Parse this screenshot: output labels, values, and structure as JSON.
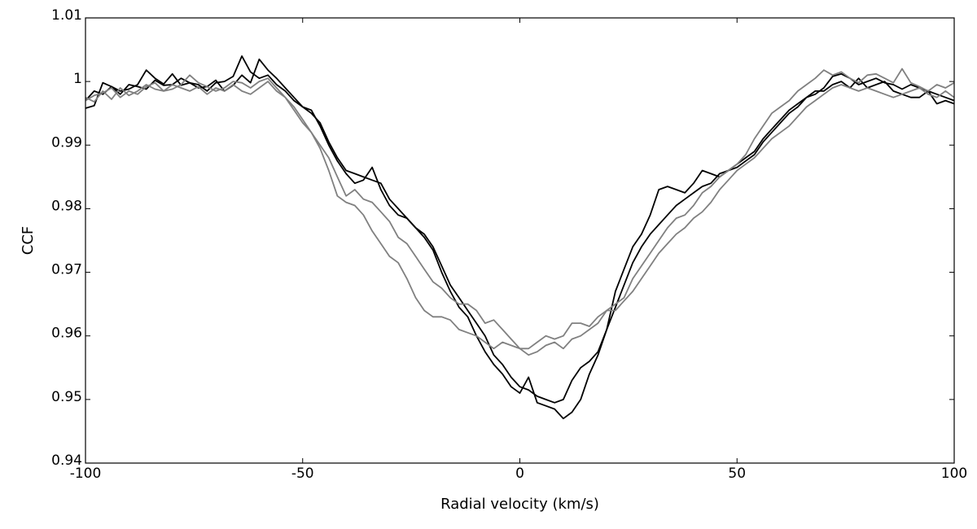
{
  "chart_data": {
    "type": "line",
    "title": "",
    "xlabel": "Radial velocity (km/s)",
    "ylabel": "CCF",
    "xlim": [
      -100,
      100
    ],
    "ylim": [
      0.94,
      1.01
    ],
    "x_ticks": [
      -100,
      -50,
      0,
      50,
      100
    ],
    "x_tick_labels": [
      "-100",
      "-50",
      "0",
      "50",
      "100"
    ],
    "y_ticks": [
      0.94,
      0.95,
      0.96,
      0.97,
      0.98,
      0.99,
      1.0,
      1.01
    ],
    "y_tick_labels": [
      "0.94",
      "0.95",
      "0.96",
      "0.97",
      "0.98",
      "0.99",
      "1",
      "1.01"
    ],
    "grid": false,
    "legend": "none",
    "series": [
      {
        "color": "#000000",
        "x": [
          -100,
          -98,
          -96,
          -94,
          -92,
          -90,
          -88,
          -86,
          -84,
          -82,
          -80,
          -78,
          -76,
          -74,
          -72,
          -70,
          -68,
          -66,
          -64,
          -62,
          -60,
          -58,
          -56,
          -54,
          -52,
          -50,
          -48,
          -46,
          -44,
          -42,
          -40,
          -38,
          -36,
          -34,
          -32,
          -30,
          -28,
          -26,
          -24,
          -22,
          -20,
          -18,
          -16,
          -14,
          -12,
          -10,
          -8,
          -6,
          -4,
          -2,
          0,
          2,
          4,
          6,
          8,
          10,
          12,
          14,
          16,
          18,
          20,
          22,
          24,
          26,
          28,
          30,
          32,
          34,
          36,
          38,
          40,
          42,
          44,
          46,
          48,
          50,
          52,
          54,
          56,
          58,
          60,
          62,
          64,
          66,
          68,
          70,
          72,
          74,
          76,
          78,
          80,
          82,
          84,
          86,
          88,
          90,
          92,
          94,
          96,
          98,
          100
        ],
        "y": [
          0.9958,
          0.9962,
          0.9998,
          0.9992,
          0.9985,
          0.9988,
          0.9995,
          1.0018,
          1.0005,
          0.9996,
          1.0012,
          0.9994,
          0.9998,
          0.999,
          0.9992,
          1.0002,
          0.9985,
          0.9994,
          1.001,
          0.9998,
          1.0035,
          1.0018,
          1.0005,
          0.999,
          0.9975,
          0.996,
          0.9955,
          0.993,
          0.99,
          0.9875,
          0.9855,
          0.984,
          0.9845,
          0.9865,
          0.983,
          0.9805,
          0.979,
          0.9785,
          0.977,
          0.9755,
          0.9735,
          0.97,
          0.967,
          0.9645,
          0.963,
          0.96,
          0.9575,
          0.9555,
          0.954,
          0.952,
          0.951,
          0.9535,
          0.9495,
          0.949,
          0.9485,
          0.947,
          0.948,
          0.95,
          0.954,
          0.957,
          0.961,
          0.967,
          0.9705,
          0.974,
          0.976,
          0.979,
          0.983,
          0.9835,
          0.983,
          0.9825,
          0.984,
          0.986,
          0.9855,
          0.985,
          0.986,
          0.987,
          0.988,
          0.989,
          0.991,
          0.9925,
          0.994,
          0.9955,
          0.9965,
          0.9975,
          0.9985,
          0.9985,
          0.9995,
          1.0,
          0.999,
          1.0005,
          0.999,
          0.9995,
          1.0,
          0.9985,
          0.998,
          0.9975,
          0.9975,
          0.9985,
          0.9965,
          0.997,
          0.9965
        ]
      },
      {
        "color": "#000000",
        "x": [
          -100,
          -98,
          -96,
          -94,
          -92,
          -90,
          -88,
          -86,
          -84,
          -82,
          -80,
          -78,
          -76,
          -74,
          -72,
          -70,
          -68,
          -66,
          -64,
          -62,
          -60,
          -58,
          -56,
          -54,
          -52,
          -50,
          -48,
          -46,
          -44,
          -42,
          -40,
          -38,
          -36,
          -34,
          -32,
          -30,
          -28,
          -26,
          -24,
          -22,
          -20,
          -18,
          -16,
          -14,
          -12,
          -10,
          -8,
          -6,
          -4,
          -2,
          0,
          2,
          4,
          6,
          8,
          10,
          12,
          14,
          16,
          18,
          20,
          22,
          24,
          26,
          28,
          30,
          32,
          34,
          36,
          38,
          40,
          42,
          44,
          46,
          48,
          50,
          52,
          54,
          56,
          58,
          60,
          62,
          64,
          66,
          68,
          70,
          72,
          74,
          76,
          78,
          80,
          82,
          84,
          86,
          88,
          90,
          92,
          94,
          96,
          98,
          100
        ],
        "y": [
          0.997,
          0.9985,
          0.998,
          0.9992,
          0.998,
          0.9995,
          0.9992,
          0.9988,
          1.0002,
          0.9994,
          0.9995,
          1.0005,
          0.9998,
          0.9995,
          0.9985,
          0.9998,
          1.0,
          1.0008,
          1.004,
          1.0015,
          1.0005,
          1.001,
          0.9995,
          0.9985,
          0.997,
          0.996,
          0.995,
          0.9935,
          0.9905,
          0.988,
          0.986,
          0.9855,
          0.985,
          0.9845,
          0.984,
          0.9815,
          0.98,
          0.9785,
          0.977,
          0.976,
          0.974,
          0.971,
          0.968,
          0.966,
          0.964,
          0.962,
          0.96,
          0.957,
          0.9555,
          0.9535,
          0.952,
          0.9515,
          0.9505,
          0.95,
          0.9495,
          0.95,
          0.953,
          0.955,
          0.956,
          0.9575,
          0.961,
          0.9645,
          0.968,
          0.9715,
          0.974,
          0.976,
          0.9775,
          0.979,
          0.9805,
          0.9815,
          0.9825,
          0.9835,
          0.984,
          0.9855,
          0.986,
          0.9865,
          0.9875,
          0.9885,
          0.9905,
          0.992,
          0.9935,
          0.995,
          0.996,
          0.9975,
          0.998,
          0.999,
          1.0008,
          1.0012,
          1.0005,
          0.9995,
          1.0,
          1.0005,
          0.9998,
          0.9995,
          0.9988,
          0.9995,
          0.999,
          0.9985,
          0.998,
          0.9975,
          0.997
        ]
      },
      {
        "color": "#808080",
        "x": [
          -100,
          -98,
          -96,
          -94,
          -92,
          -90,
          -88,
          -86,
          -84,
          -82,
          -80,
          -78,
          -76,
          -74,
          -72,
          -70,
          -68,
          -66,
          -64,
          -62,
          -60,
          -58,
          -56,
          -54,
          -52,
          -50,
          -48,
          -46,
          -44,
          -42,
          -40,
          -38,
          -36,
          -34,
          -32,
          -30,
          -28,
          -26,
          -24,
          -22,
          -20,
          -18,
          -16,
          -14,
          -12,
          -10,
          -8,
          -6,
          -4,
          -2,
          0,
          2,
          4,
          6,
          8,
          10,
          12,
          14,
          16,
          18,
          20,
          22,
          24,
          26,
          28,
          30,
          32,
          34,
          36,
          38,
          40,
          42,
          44,
          46,
          48,
          50,
          52,
          54,
          56,
          58,
          60,
          62,
          64,
          66,
          68,
          70,
          72,
          74,
          76,
          78,
          80,
          82,
          84,
          86,
          88,
          90,
          92,
          94,
          96,
          98,
          100
        ],
        "y": [
          0.997,
          0.9978,
          0.9982,
          0.999,
          0.9975,
          0.9985,
          0.998,
          0.9992,
          0.9998,
          0.9985,
          0.9988,
          0.9995,
          1.001,
          0.9998,
          0.9992,
          0.9985,
          0.999,
          1.0,
          0.9998,
          0.999,
          1.0,
          1.0005,
          0.999,
          0.9975,
          0.9955,
          0.9935,
          0.992,
          0.99,
          0.988,
          0.985,
          0.982,
          0.983,
          0.9815,
          0.981,
          0.9795,
          0.978,
          0.9755,
          0.9745,
          0.9725,
          0.9705,
          0.9685,
          0.9675,
          0.966,
          0.965,
          0.965,
          0.964,
          0.962,
          0.9625,
          0.961,
          0.9595,
          0.958,
          0.957,
          0.9575,
          0.9585,
          0.959,
          0.958,
          0.9595,
          0.96,
          0.961,
          0.962,
          0.964,
          0.965,
          0.966,
          0.969,
          0.971,
          0.973,
          0.975,
          0.977,
          0.9785,
          0.979,
          0.9805,
          0.9825,
          0.9835,
          0.985,
          0.986,
          0.987,
          0.9885,
          0.991,
          0.993,
          0.995,
          0.996,
          0.997,
          0.9985,
          0.9995,
          1.0005,
          1.0018,
          1.001,
          1.0015,
          1.0005,
          0.9998,
          1.001,
          1.0012,
          1.0005,
          0.9998,
          1.002,
          0.9998,
          0.9992,
          0.9985,
          0.9995,
          0.999,
          0.9998
        ]
      },
      {
        "color": "#808080",
        "x": [
          -100,
          -98,
          -96,
          -94,
          -92,
          -90,
          -88,
          -86,
          -84,
          -82,
          -80,
          -78,
          -76,
          -74,
          -72,
          -70,
          -68,
          -66,
          -64,
          -62,
          -60,
          -58,
          -56,
          -54,
          -52,
          -50,
          -48,
          -46,
          -44,
          -42,
          -40,
          -38,
          -36,
          -34,
          -32,
          -30,
          -28,
          -26,
          -24,
          -22,
          -20,
          -18,
          -16,
          -14,
          -12,
          -10,
          -8,
          -6,
          -4,
          -2,
          0,
          2,
          4,
          6,
          8,
          10,
          12,
          14,
          16,
          18,
          20,
          22,
          24,
          26,
          28,
          30,
          32,
          34,
          36,
          38,
          40,
          42,
          44,
          46,
          48,
          50,
          52,
          54,
          56,
          58,
          60,
          62,
          64,
          66,
          68,
          70,
          72,
          74,
          76,
          78,
          80,
          82,
          84,
          86,
          88,
          90,
          92,
          94,
          96,
          98,
          100
        ],
        "y": [
          0.9975,
          0.9968,
          0.9985,
          0.9972,
          0.999,
          0.9978,
          0.9985,
          0.9995,
          0.9988,
          0.9985,
          0.9995,
          0.999,
          0.9985,
          0.9992,
          0.998,
          0.999,
          0.9985,
          0.9995,
          0.9985,
          0.998,
          0.999,
          1.0,
          0.9985,
          0.9975,
          0.996,
          0.994,
          0.992,
          0.9895,
          0.986,
          0.982,
          0.981,
          0.9805,
          0.979,
          0.9765,
          0.9745,
          0.9725,
          0.9715,
          0.969,
          0.966,
          0.964,
          0.963,
          0.963,
          0.9625,
          0.961,
          0.9605,
          0.96,
          0.959,
          0.958,
          0.959,
          0.9585,
          0.958,
          0.958,
          0.959,
          0.96,
          0.9595,
          0.96,
          0.962,
          0.962,
          0.9615,
          0.963,
          0.964,
          0.964,
          0.9655,
          0.967,
          0.969,
          0.971,
          0.973,
          0.9745,
          0.976,
          0.977,
          0.9785,
          0.9795,
          0.981,
          0.983,
          0.9845,
          0.986,
          0.987,
          0.988,
          0.9895,
          0.991,
          0.992,
          0.993,
          0.9945,
          0.996,
          0.997,
          0.998,
          0.999,
          0.9995,
          0.999,
          0.9985,
          0.999,
          0.9985,
          0.998,
          0.9975,
          0.998,
          0.9985,
          0.999,
          0.998,
          0.9975,
          0.9985,
          0.9975
        ]
      }
    ]
  }
}
